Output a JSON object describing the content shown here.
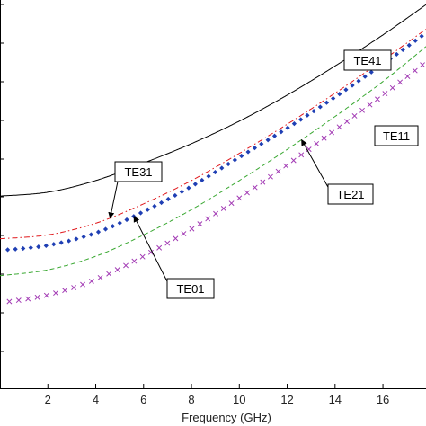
{
  "chart_data": {
    "type": "line",
    "title": "",
    "xlabel": "Frequency (GHz)",
    "ylabel": "",
    "xlim": [
      0,
      17.8
    ],
    "ylim": [
      0,
      100
    ],
    "x_ticks": [
      2,
      4,
      6,
      8,
      10,
      12,
      14,
      16
    ],
    "grid": false,
    "legend": "none",
    "series": [
      {
        "name": "TE41",
        "style": "solid",
        "color": "#000000",
        "x": [
          0,
          2,
          4,
          6,
          8,
          10,
          12,
          14,
          16,
          17.8
        ],
        "y": [
          49.5,
          50.5,
          53.5,
          58.0,
          63.0,
          68.8,
          75.5,
          83.0,
          91.0,
          98.8
        ]
      },
      {
        "name": "TE31",
        "style": "dash-dot",
        "color": "#e0181c",
        "x": [
          0,
          2,
          4,
          6,
          8,
          10,
          12,
          14,
          16,
          17.8
        ],
        "y": [
          38.5,
          39.5,
          42.5,
          47.5,
          53.5,
          60.5,
          68.0,
          76.0,
          84.5,
          92.5
        ]
      },
      {
        "name": "TE01",
        "style": "diamond",
        "color": "#1f3fb4",
        "x": [
          0,
          2,
          4,
          6,
          8,
          10,
          12,
          14,
          16,
          17.8
        ],
        "y": [
          35.5,
          36.8,
          40.0,
          45.5,
          52.0,
          59.5,
          67.0,
          75.0,
          83.5,
          91.5
        ]
      },
      {
        "name": "TE21",
        "style": "dashed",
        "color": "#3aa832",
        "x": [
          0,
          2,
          4,
          6,
          8,
          10,
          12,
          14,
          16,
          17.8
        ],
        "y": [
          29.0,
          30.5,
          34.0,
          39.5,
          46.0,
          53.5,
          61.5,
          70.0,
          79.0,
          88.0
        ]
      },
      {
        "name": "TE11",
        "style": "cross",
        "color": "#a23ab4",
        "x": [
          0,
          2,
          4,
          6,
          8,
          10,
          12,
          14,
          16,
          17.8
        ],
        "y": [
          22.0,
          24.0,
          28.0,
          34.0,
          41.0,
          49.0,
          57.5,
          66.5,
          75.5,
          84.0
        ]
      }
    ],
    "annotations": [
      {
        "text": "TE41",
        "target_series": "TE41"
      },
      {
        "text": "TE11",
        "target_series": "TE11"
      },
      {
        "text": "TE31",
        "target_series": "TE31"
      },
      {
        "text": "TE21",
        "target_series": "TE21"
      },
      {
        "text": "TE01",
        "target_series": "TE01"
      }
    ]
  }
}
